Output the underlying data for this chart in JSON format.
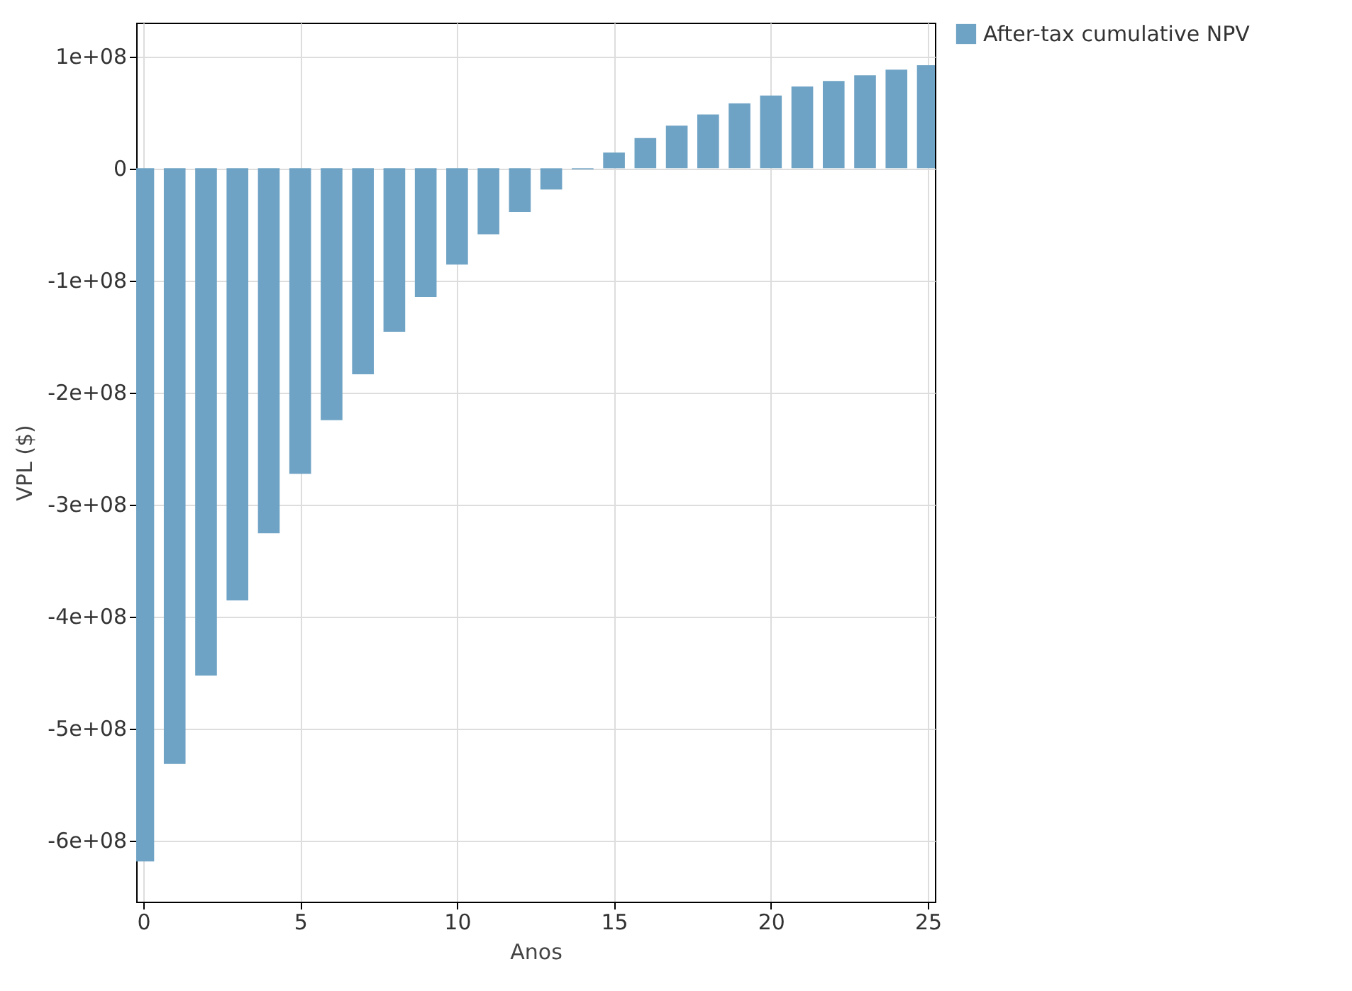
{
  "chart_data": {
    "type": "bar",
    "xlabel": "Anos",
    "ylabel": "VPL ($)",
    "x": [
      0,
      1,
      2,
      3,
      4,
      5,
      6,
      7,
      8,
      9,
      10,
      11,
      12,
      13,
      14,
      15,
      16,
      17,
      18,
      19,
      20,
      21,
      22,
      23,
      24,
      25
    ],
    "series": [
      {
        "name": "After-tax cumulative NPV",
        "color": "#6fa3c5",
        "values": [
          -619000000,
          -532000000,
          -453000000,
          -386000000,
          -326000000,
          -273000000,
          -225000000,
          -184000000,
          -146000000,
          -115000000,
          -86000000,
          -59000000,
          -39000000,
          -19000000,
          -1000000,
          14000000,
          27000000,
          38000000,
          48000000,
          58000000,
          65000000,
          73000000,
          78000000,
          83000000,
          88000000,
          92000000
        ]
      }
    ],
    "xlim": [
      0,
      25
    ],
    "xticks": [
      0,
      5,
      10,
      15,
      20,
      25
    ],
    "ylim": [
      -655000000,
      130000000
    ],
    "yticks": [
      {
        "value": -600000000,
        "label": "-6e+08"
      },
      {
        "value": -500000000,
        "label": "-5e+08"
      },
      {
        "value": -400000000,
        "label": "-4e+08"
      },
      {
        "value": -300000000,
        "label": "-3e+08"
      },
      {
        "value": -200000000,
        "label": "-2e+08"
      },
      {
        "value": -100000000,
        "label": "-1e+08"
      },
      0,
      {
        "value": 100000000,
        "label": "1e+08"
      }
    ],
    "grid": true,
    "legend": "top right"
  }
}
